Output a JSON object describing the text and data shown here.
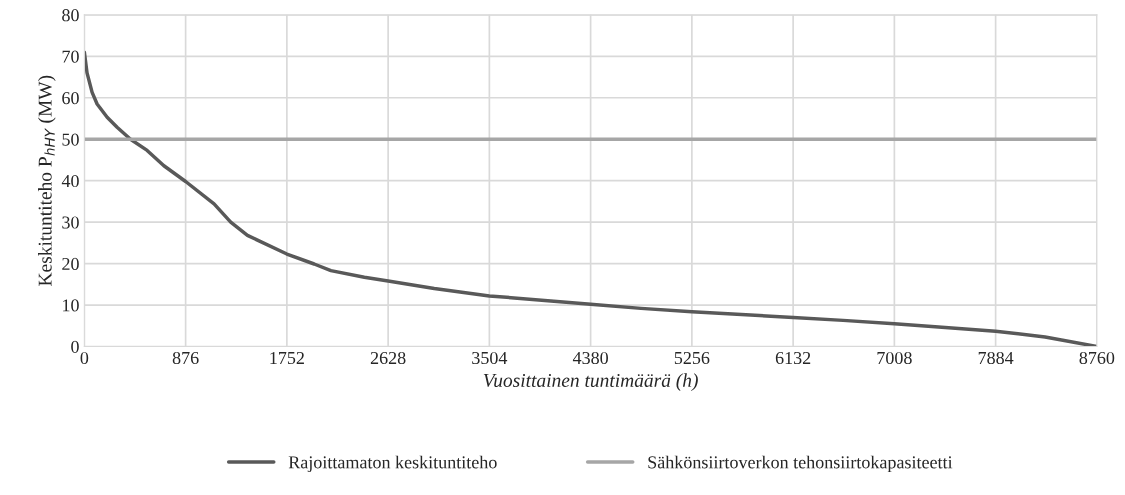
{
  "chart_data": {
    "type": "line",
    "xlabel": "Vuosittainen tuntimäärä (h)",
    "ylabel": "Keskituntiteho P$_{hHY}$ (MW)",
    "xlim": [
      0,
      8760
    ],
    "xticks": [
      0,
      876,
      1752,
      2628,
      3504,
      4380,
      5256,
      6132,
      7008,
      7884,
      8760
    ],
    "ylim": [
      0,
      80
    ],
    "yticks": [
      0,
      10,
      20,
      30,
      40,
      50,
      60,
      70,
      80
    ],
    "grid": true,
    "legend": "bottom",
    "marker": "none",
    "line_style": "solid",
    "series": [
      {
        "name": "Rajoittamaton keskituntiteho",
        "color": "#595959",
        "x": [
          0,
          23,
          67,
          110,
          197,
          283,
          399,
          543,
          688,
          876,
          1122,
          1266,
          1411,
          1752,
          1988,
          2133,
          2422,
          2628,
          3027,
          3504,
          4380,
          4816,
          5256,
          6132,
          6564,
          7008,
          7448,
          7884,
          8312,
          8760
        ],
        "values": [
          71,
          66,
          61.3,
          58.5,
          55.3,
          52.9,
          50,
          47.3,
          43.6,
          39.8,
          34.4,
          30,
          26.8,
          22.3,
          19.9,
          18.3,
          16.7,
          15.8,
          14,
          12.2,
          10.2,
          9.2,
          8.4,
          7,
          6.3,
          5.5,
          4.6,
          3.7,
          2.3,
          0
        ]
      },
      {
        "name": "Sähkönsiirtoverkon tehonsiirtokapasiteetti",
        "color": "#a6a6a6",
        "x": [
          0,
          8760
        ],
        "values": [
          50,
          50
        ]
      }
    ]
  }
}
